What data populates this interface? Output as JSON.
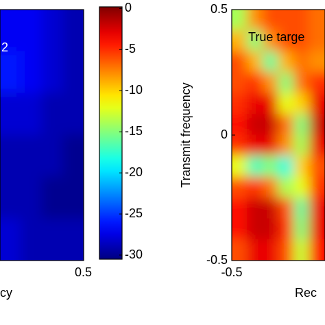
{
  "chart_data": [
    {
      "type": "heatmap",
      "annotation": "2",
      "xlabel": "cy",
      "xlim": [
        0.1667,
        0.5
      ],
      "xticks": [
        0.5
      ],
      "ylim": [
        -0.5,
        0.5
      ],
      "clim": [
        -30.5,
        0.2
      ],
      "cticks": [
        0,
        -5,
        -10,
        -15,
        -20,
        -25,
        -30
      ],
      "z": [
        [
          -27,
          -27,
          -28,
          -29
        ],
        [
          -26,
          -27,
          -28,
          -29
        ],
        [
          -28,
          -28,
          -29,
          -29
        ],
        [
          -29,
          -29,
          -29,
          -30
        ],
        [
          -29,
          -29,
          -30,
          -30
        ],
        [
          -28,
          -29,
          -29,
          -29
        ]
      ]
    },
    {
      "type": "heatmap",
      "annotation": "True targe",
      "xlabel": "Rec",
      "ylabel": "Transmit frequency",
      "xlim": [
        -0.5,
        -0.1284
      ],
      "xticks": [
        -0.5
      ],
      "ylim": [
        -0.5,
        0.5
      ],
      "yticks": [
        -0.5,
        0,
        0.5
      ],
      "clim": [
        -30.5,
        0.2
      ],
      "z": [
        [
          -14,
          -8,
          -6,
          -6,
          -6,
          -7
        ],
        [
          -9,
          -15,
          -8,
          -6,
          -6,
          -7
        ],
        [
          -6,
          -9,
          -16,
          -9,
          -7,
          -8
        ],
        [
          -6,
          -5,
          -8,
          -15,
          -7,
          -5
        ],
        [
          -5,
          -3,
          -3,
          -12,
          -10,
          -3
        ],
        [
          -4,
          -2,
          -2,
          -7,
          -15,
          -2
        ],
        [
          -5,
          -3,
          -3,
          -8,
          -14,
          -3
        ],
        [
          -12,
          -17,
          -15,
          -18,
          -10,
          -6
        ],
        [
          -6,
          -5,
          -7,
          -14,
          -12,
          -5
        ],
        [
          -4,
          -2,
          -2,
          -6,
          -16,
          -3
        ],
        [
          -4,
          -2,
          -2,
          -5,
          -15,
          -3
        ],
        [
          -6,
          -3,
          -3,
          -6,
          -13,
          -4
        ]
      ]
    }
  ]
}
